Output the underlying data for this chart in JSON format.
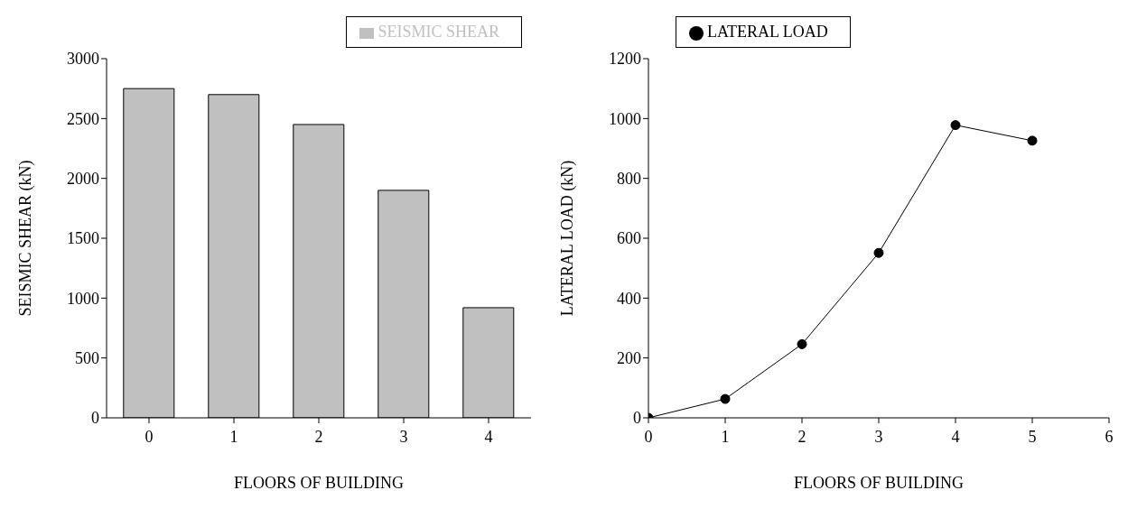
{
  "chart_data": [
    {
      "type": "bar",
      "xlabel": "FLOORS OF BUILDING",
      "ylabel": "SEISMIC SHEAR (kN)",
      "categories": [
        "0",
        "1",
        "2",
        "3",
        "4"
      ],
      "series": [
        {
          "name": "SEISMIC SHEAR",
          "color": "#c0c0c0",
          "values": [
            2750,
            2700,
            2450,
            1900,
            920
          ]
        }
      ],
      "ylim": [
        0,
        3000
      ],
      "yticks": [
        0,
        500,
        1000,
        1500,
        2000,
        2500,
        3000
      ],
      "grid": false,
      "legend": "top right"
    },
    {
      "type": "line",
      "xlabel": "FLOORS OF BUILDING",
      "ylabel": "LATERAL LOAD (kN)",
      "x": [
        0,
        1,
        2,
        3,
        4,
        5
      ],
      "series": [
        {
          "name": "LATERAL LOAD",
          "color": "#000000",
          "values": [
            0,
            63,
            246,
            551,
            978,
            926
          ]
        }
      ],
      "xlim": [
        0,
        6
      ],
      "xticks": [
        0,
        1,
        2,
        3,
        4,
        5,
        6
      ],
      "ylim": [
        0,
        1200
      ],
      "yticks": [
        0,
        200,
        400,
        600,
        800,
        1000,
        1200
      ],
      "grid": false,
      "legend": "top left",
      "marker": "circle",
      "line_style": "solid"
    }
  ]
}
